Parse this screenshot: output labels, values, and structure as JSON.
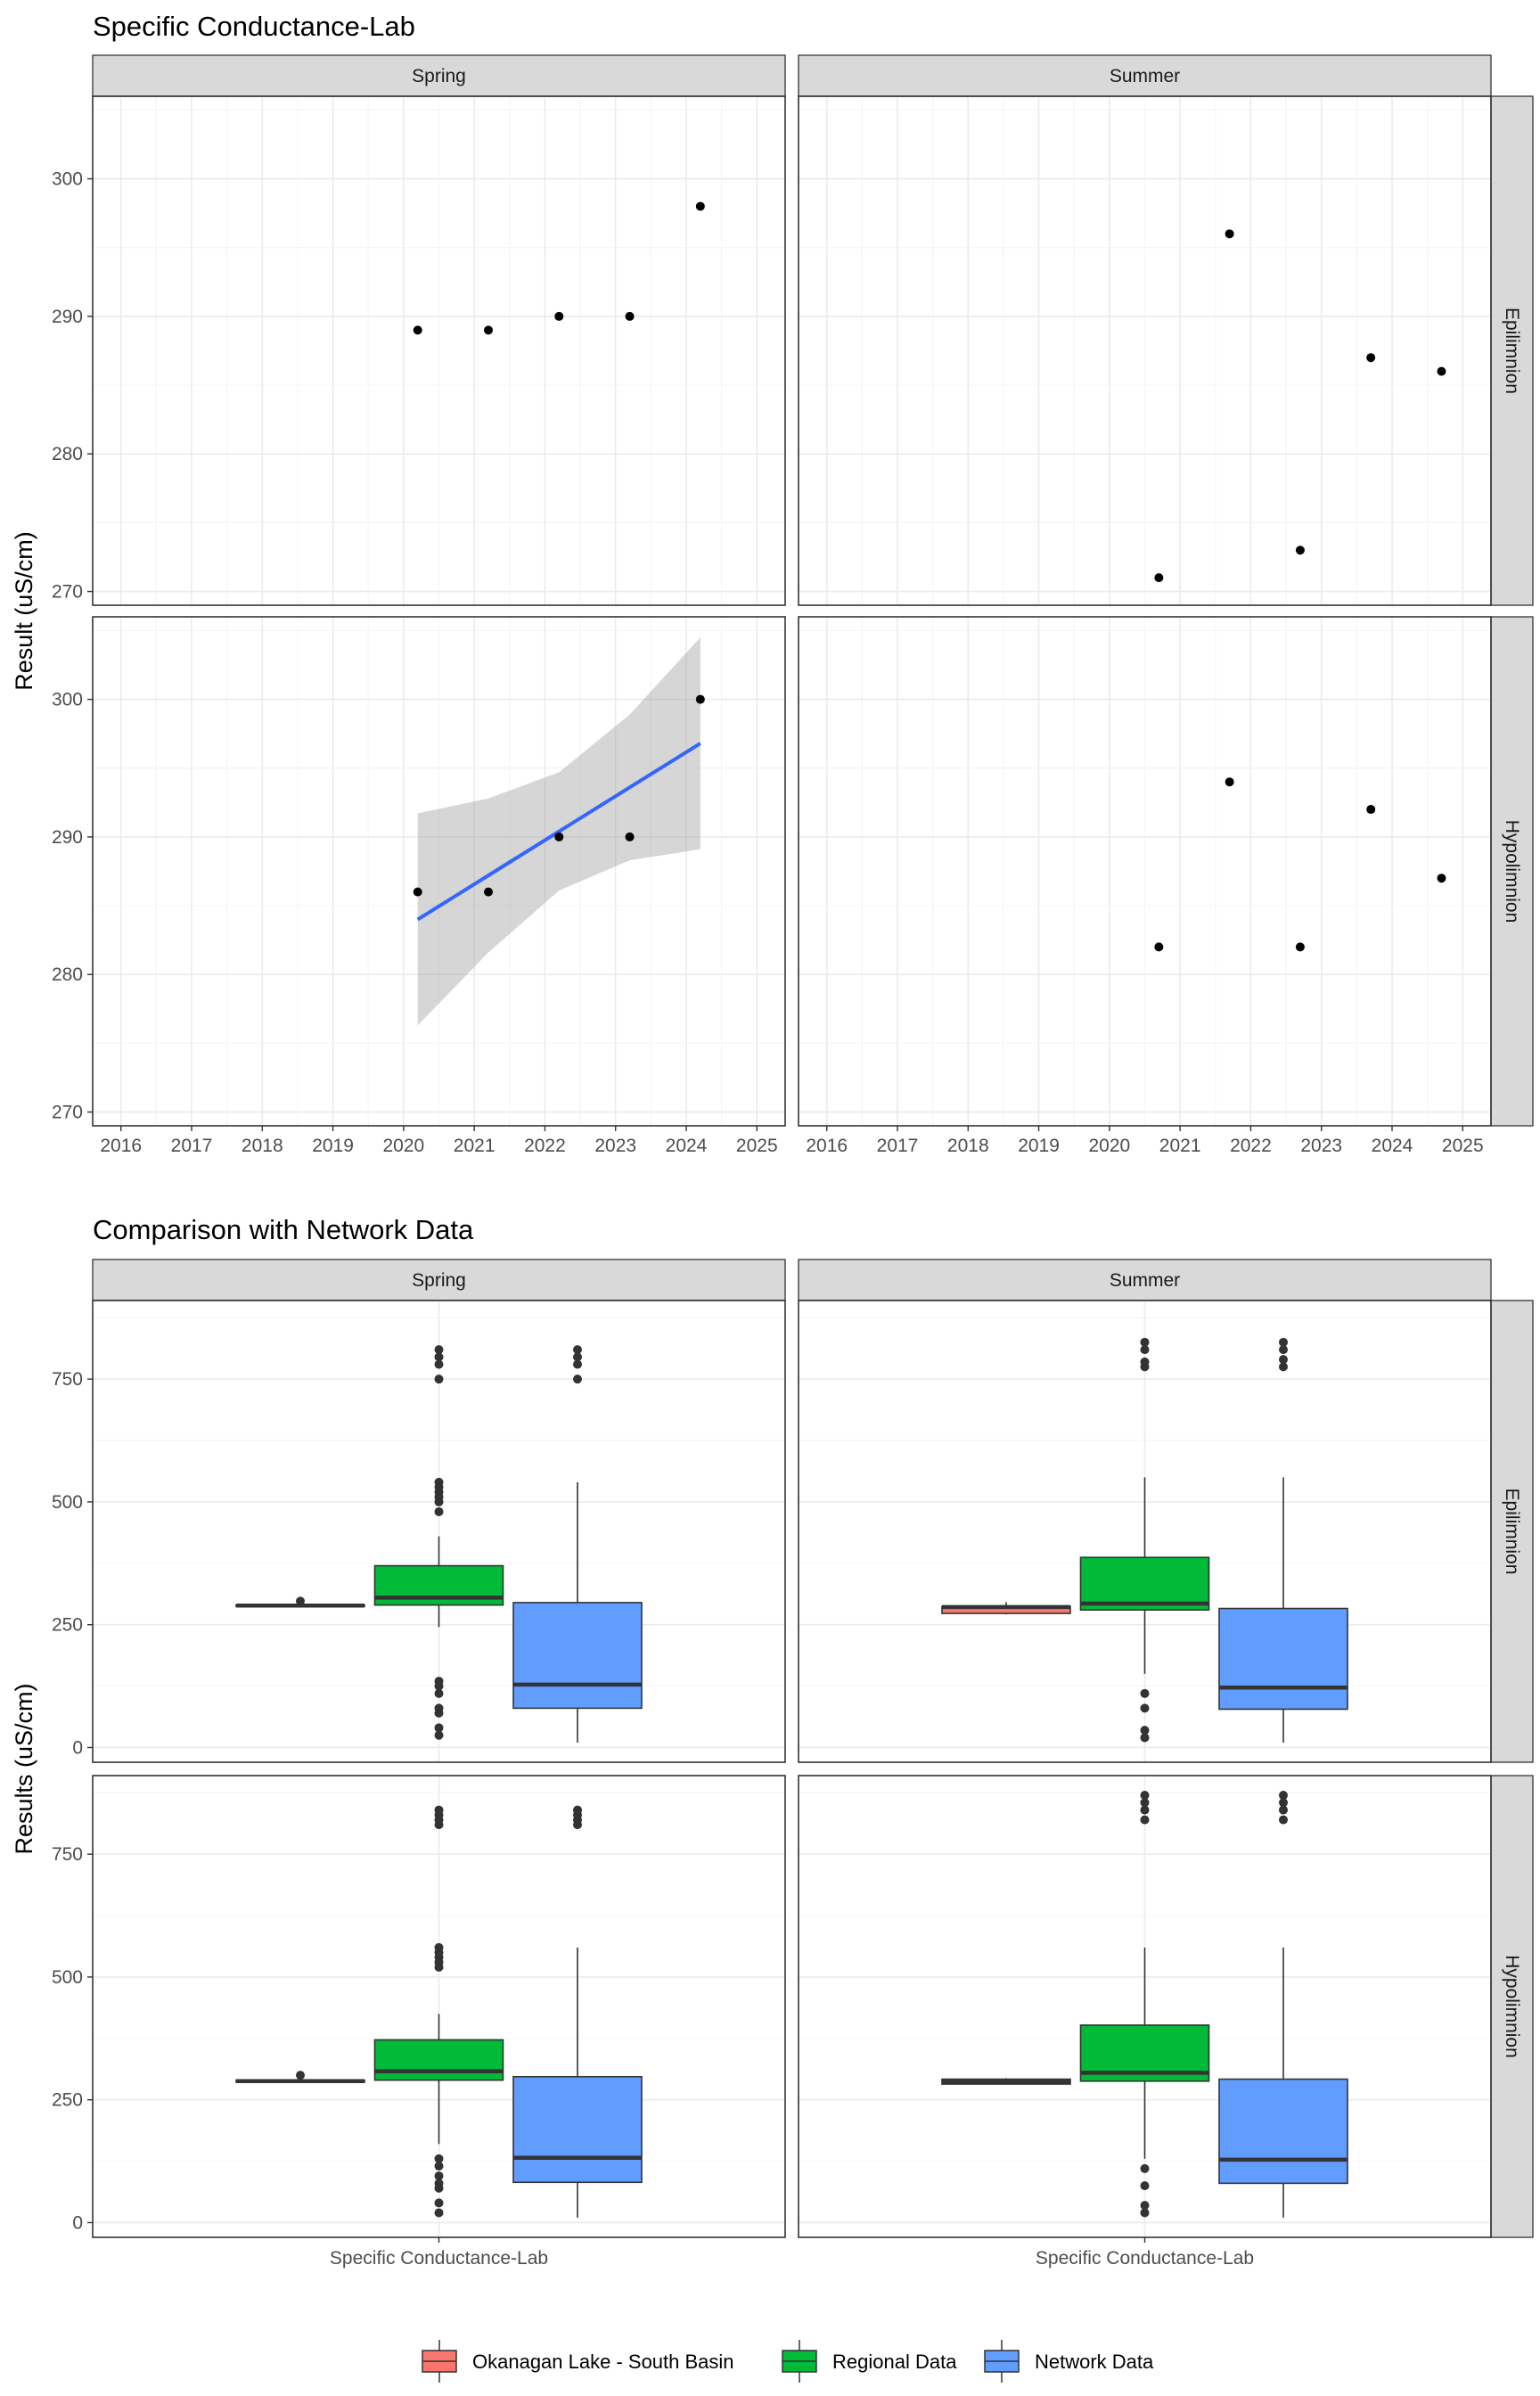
{
  "colors": {
    "okanagan": "#F8766D",
    "regional": "#00BA38",
    "network": "#619CFF",
    "smooth_line": "#3366FF",
    "ribbon": "#999999",
    "point": "#000000",
    "outlier": "#333333",
    "strip_bg": "#D9D9D9",
    "grid_major": "#EBEBEB",
    "grid_minor": "#F5F5F5",
    "panel_border": "#333333"
  },
  "chart_data": [
    {
      "type": "scatter",
      "title": "Specific Conductance-Lab",
      "ylabel": "Result (uS/cm)",
      "xlabel": "",
      "columns": [
        "Spring",
        "Summer"
      ],
      "rows": [
        "Epilimnion",
        "Hypolimnion"
      ],
      "x_ticks": [
        "2016",
        "2017",
        "2018",
        "2019",
        "2020",
        "2021",
        "2022",
        "2023",
        "2024",
        "2025"
      ],
      "xlim": [
        2015.6,
        2025.4
      ],
      "y_ticks": [
        270,
        280,
        290,
        300
      ],
      "ylim": [
        269,
        306
      ],
      "grid": true,
      "panels": [
        {
          "column": "Spring",
          "row": "Epilimnion",
          "points": [
            [
              2020.2,
              289
            ],
            [
              2021.2,
              289
            ],
            [
              2022.2,
              290
            ],
            [
              2023.2,
              290
            ],
            [
              2024.2,
              298
            ]
          ]
        },
        {
          "column": "Summer",
          "row": "Epilimnion",
          "points": [
            [
              2020.7,
              271
            ],
            [
              2021.7,
              296
            ],
            [
              2022.7,
              273
            ],
            [
              2023.7,
              287
            ],
            [
              2024.7,
              286
            ]
          ]
        },
        {
          "column": "Spring",
          "row": "Hypolimnion",
          "points": [
            [
              2020.2,
              286
            ],
            [
              2021.2,
              286
            ],
            [
              2022.2,
              290
            ],
            [
              2023.2,
              290
            ],
            [
              2024.2,
              300
            ]
          ],
          "smooth": {
            "x": [
              2020.2,
              2021.2,
              2022.2,
              2023.2,
              2024.2
            ],
            "fit": [
              284.0,
              287.2,
              290.4,
              293.6,
              296.8
            ],
            "lower": [
              276.3,
              281.6,
              286.1,
              288.3,
              289.1
            ],
            "upper": [
              291.7,
              292.8,
              294.7,
              298.9,
              304.5
            ]
          }
        },
        {
          "column": "Summer",
          "row": "Hypolimnion",
          "points": [
            [
              2020.7,
              282
            ],
            [
              2021.7,
              294
            ],
            [
              2022.7,
              282
            ],
            [
              2023.7,
              292
            ],
            [
              2024.7,
              287
            ]
          ]
        }
      ]
    },
    {
      "type": "box",
      "title": "Comparison with Network Data",
      "ylabel": "Results (uS/cm)",
      "xlabel": "",
      "columns": [
        "Spring",
        "Summer"
      ],
      "rows": [
        "Epilimnion",
        "Hypolimnion"
      ],
      "x_category": "Specific Conductance-Lab",
      "y_ticks": [
        0,
        250,
        500,
        750
      ],
      "ylim": [
        -30,
        910
      ],
      "grid": true,
      "legend": {
        "position": "bottom",
        "entries": [
          "Okanagan Lake - South Basin",
          "Regional Data",
          "Network Data"
        ]
      },
      "panels": [
        {
          "column": "Spring",
          "row": "Epilimnion",
          "boxes": [
            {
              "series": "Okanagan Lake - South Basin",
              "q1": 289,
              "median": 289,
              "q3": 290,
              "whisker_low": 289,
              "whisker_high": 290,
              "outliers": [
                298
              ]
            },
            {
              "series": "Regional Data",
              "q1": 290,
              "median": 305,
              "q3": 370,
              "whisker_low": 245,
              "whisker_high": 430,
              "outliers": [
                25,
                40,
                70,
                80,
                110,
                125,
                135,
                480,
                500,
                510,
                520,
                530,
                540,
                750,
                780,
                795,
                810
              ]
            },
            {
              "series": "Network Data",
              "q1": 80,
              "median": 128,
              "q3": 295,
              "whisker_low": 10,
              "whisker_high": 540,
              "outliers": [
                750,
                780,
                795,
                810
              ]
            }
          ]
        },
        {
          "column": "Summer",
          "row": "Epilimnion",
          "boxes": [
            {
              "series": "Okanagan Lake - South Basin",
              "q1": 273,
              "median": 286,
              "q3": 287,
              "whisker_low": 271,
              "whisker_high": 296,
              "outliers": []
            },
            {
              "series": "Regional Data",
              "q1": 280,
              "median": 293,
              "q3": 387,
              "whisker_low": 150,
              "whisker_high": 550,
              "outliers": [
                20,
                35,
                80,
                110,
                775,
                785,
                810,
                825
              ]
            },
            {
              "series": "Network Data",
              "q1": 78,
              "median": 122,
              "q3": 283,
              "whisker_low": 10,
              "whisker_high": 550,
              "outliers": [
                775,
                790,
                810,
                825
              ]
            }
          ]
        },
        {
          "column": "Spring",
          "row": "Hypolimnion",
          "boxes": [
            {
              "series": "Okanagan Lake - South Basin",
              "q1": 286,
              "median": 288,
              "q3": 290,
              "whisker_low": 286,
              "whisker_high": 290,
              "outliers": [
                300
              ]
            },
            {
              "series": "Regional Data",
              "q1": 290,
              "median": 308,
              "q3": 372,
              "whisker_low": 160,
              "whisker_high": 425,
              "outliers": [
                20,
                40,
                70,
                80,
                95,
                115,
                130,
                520,
                530,
                540,
                550,
                560,
                810,
                820,
                830,
                840
              ]
            },
            {
              "series": "Network Data",
              "q1": 82,
              "median": 132,
              "q3": 297,
              "whisker_low": 10,
              "whisker_high": 560,
              "outliers": [
                810,
                820,
                830,
                840
              ]
            }
          ]
        },
        {
          "column": "Summer",
          "row": "Hypolimnion",
          "boxes": [
            {
              "series": "Okanagan Lake - South Basin",
              "q1": 282,
              "median": 287,
              "q3": 292,
              "whisker_low": 282,
              "whisker_high": 294,
              "outliers": []
            },
            {
              "series": "Regional Data",
              "q1": 288,
              "median": 305,
              "q3": 402,
              "whisker_low": 130,
              "whisker_high": 560,
              "outliers": [
                20,
                35,
                75,
                110,
                820,
                840,
                855,
                870
              ]
            },
            {
              "series": "Network Data",
              "q1": 80,
              "median": 128,
              "q3": 292,
              "whisker_low": 10,
              "whisker_high": 560,
              "outliers": [
                820,
                840,
                855,
                870
              ]
            }
          ]
        }
      ]
    }
  ]
}
